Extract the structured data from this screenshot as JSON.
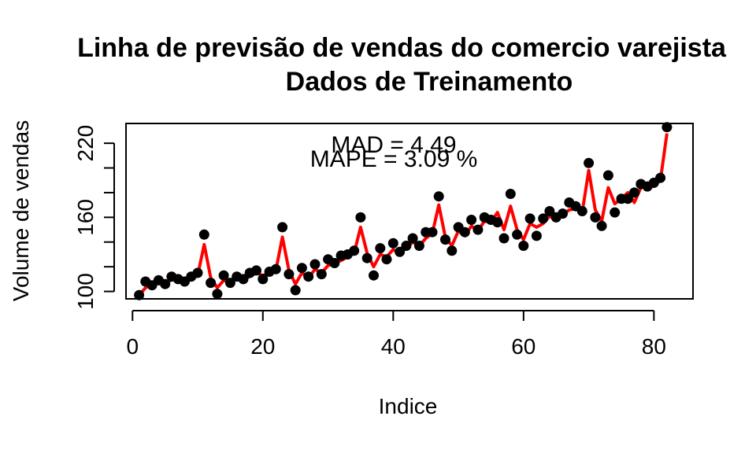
{
  "chart_data": {
    "type": "line",
    "title": "Linha de previsão de vendas do comercio varejista",
    "subtitle": "Dados de Treinamento",
    "xlabel": "Indice",
    "ylabel": "Volume de vendas",
    "xlim": [
      -1,
      86
    ],
    "ylim": [
      94,
      236
    ],
    "xticks": [
      0,
      20,
      40,
      60,
      80
    ],
    "yticks": [
      100,
      120,
      140,
      160,
      180,
      200,
      220
    ],
    "ytick_labels": [
      "100",
      "",
      "",
      "160",
      "",
      "",
      "220"
    ],
    "annotations": {
      "mad": "MAD = 4.49",
      "mape": "MAPE = 3.09 %"
    },
    "colors": {
      "observed": "#000000",
      "fitted": "#ff0000"
    },
    "series": [
      {
        "type": "scatter",
        "values": [
          97,
          108,
          105,
          109,
          106,
          112,
          110,
          108,
          112,
          115,
          146,
          107,
          98,
          113,
          107,
          112,
          110,
          115,
          117,
          110,
          116,
          118,
          152,
          114,
          101,
          119,
          112,
          122,
          114,
          126,
          123,
          129,
          130,
          133,
          160,
          127,
          113,
          135,
          126,
          139,
          132,
          137,
          143,
          137,
          148,
          148,
          177,
          142,
          133,
          152,
          148,
          158,
          150,
          160,
          158,
          156,
          143,
          179,
          146,
          137,
          159,
          145,
          159,
          165,
          160,
          163,
          172,
          169,
          165,
          204,
          160,
          153,
          194,
          164,
          175,
          175,
          180,
          187,
          185,
          188,
          192,
          233
        ]
      },
      {
        "type": "line",
        "values": [
          97,
          103,
          106,
          107,
          105,
          110,
          109,
          110,
          111,
          113,
          138,
          111,
          103,
          109,
          108,
          111,
          110,
          112,
          115,
          113,
          115,
          117,
          144,
          117,
          106,
          115,
          111,
          118,
          115,
          121,
          123,
          125,
          128,
          131,
          152,
          131,
          120,
          130,
          128,
          134,
          131,
          135,
          140,
          137,
          143,
          147,
          170,
          144,
          137,
          149,
          145,
          153,
          149,
          157,
          156,
          164,
          150,
          169,
          150,
          142,
          155,
          152,
          155,
          161,
          158,
          162,
          166,
          167,
          164,
          198,
          166,
          157,
          184,
          171,
          175,
          180,
          172,
          184,
          186,
          185,
          190,
          228
        ]
      }
    ]
  }
}
